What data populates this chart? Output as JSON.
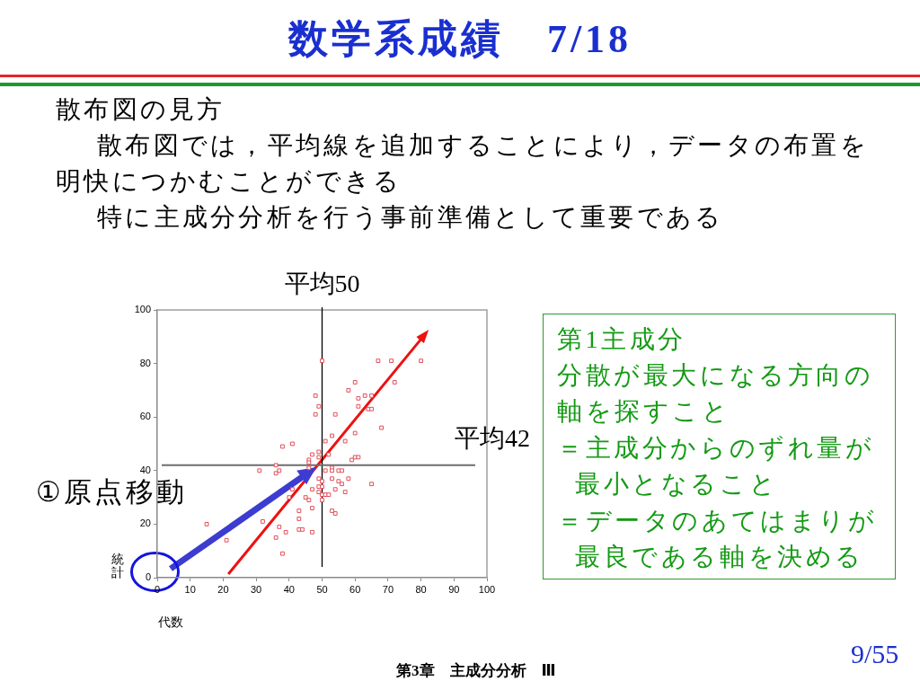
{
  "chart_data": {
    "type": "scatter",
    "title": "数学系成績　7/18",
    "xlabel": "代数",
    "ylabel": "統計",
    "x": [
      50,
      67,
      71,
      80,
      60,
      72,
      58,
      48,
      61,
      63,
      65,
      49,
      61,
      64,
      65,
      48,
      54,
      68,
      60,
      53,
      51,
      57,
      38,
      41,
      49,
      47,
      52,
      46,
      46,
      49,
      59,
      60,
      61,
      36,
      31,
      36,
      37,
      46,
      51,
      53,
      53,
      55,
      56,
      49,
      50,
      53,
      55,
      56,
      58,
      65,
      41,
      47,
      49,
      50,
      54,
      49,
      50,
      51,
      52,
      57,
      40,
      45,
      46,
      50,
      47,
      43,
      53,
      54,
      43,
      32,
      15,
      37,
      43,
      44,
      39,
      47,
      36,
      21,
      38
    ],
    "values": [
      81,
      81,
      81,
      81,
      73,
      73,
      70,
      68,
      67,
      68,
      68,
      64,
      64,
      63,
      63,
      61,
      61,
      56,
      54,
      53,
      51,
      51,
      49,
      50,
      47,
      46,
      46,
      44,
      43,
      45,
      44,
      45,
      45,
      42,
      40,
      39,
      40,
      41,
      40,
      41,
      40,
      40,
      40,
      37,
      36,
      37,
      36,
      35,
      37,
      35,
      33,
      33,
      34,
      34,
      33,
      32,
      31,
      31,
      31,
      32,
      30,
      30,
      29,
      29,
      26,
      25,
      25,
      24,
      22,
      21,
      20,
      19,
      18,
      18,
      17,
      17,
      15,
      14,
      9
    ],
    "color": "#e0505a",
    "marker": "square",
    "xlim": [
      0,
      100
    ],
    "xticks": [
      0,
      10,
      20,
      30,
      40,
      50,
      60,
      70,
      80,
      90,
      100
    ],
    "ylim": [
      0,
      100
    ],
    "yticks": [
      0,
      20,
      40,
      60,
      80,
      100
    ],
    "grid": false,
    "ref_lines": [
      {
        "axis": "x",
        "value": 50,
        "label": "平均50",
        "color": "#000000"
      },
      {
        "axis": "y",
        "value": 42,
        "label": "平均42",
        "color": "#6e6e6e"
      }
    ],
    "annotations": [
      "散布図の見方",
      "散布図では，平均線を追加することにより，データの布置を",
      "明快につかむことができる",
      "特に主成分分析を行う事前準備として重要である",
      "①原点移動",
      "第1主成分",
      "分散が最大になる方向の",
      "軸を探すこと",
      "＝主成分からのずれ量が",
      "最小となること",
      "＝データのあてはまりが",
      "最良である軸を決める",
      "第3章　主成分分析　Ⅲ",
      "9/55"
    ]
  }
}
